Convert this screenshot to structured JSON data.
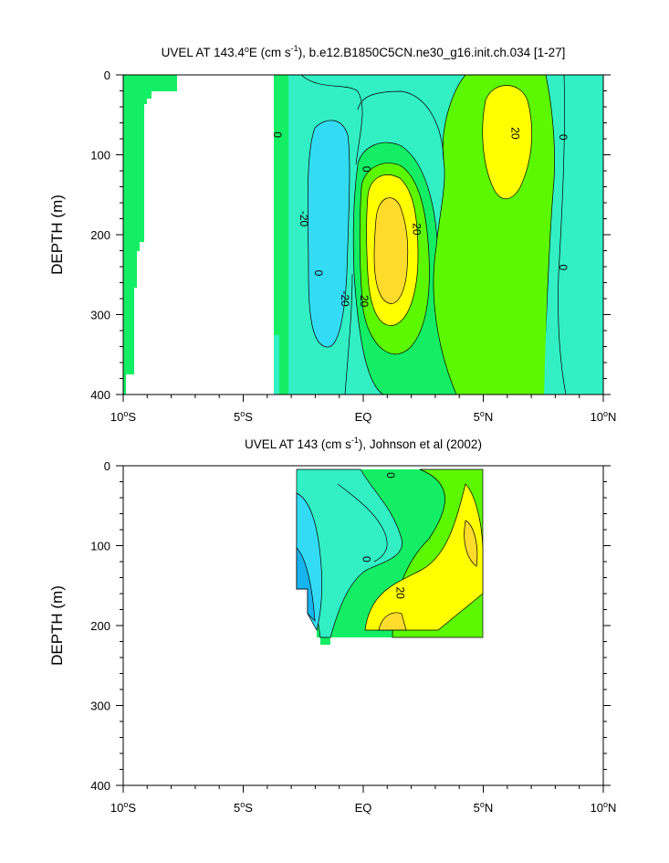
{
  "chart_data": [
    {
      "type": "contour",
      "title": "UVEL AT 143.4°E (cm s-1), b.e12.B1850C5CN.ne30_g16.init.ch.034 [1-27]",
      "title_parts": {
        "pre": "UVEL AT 143.4",
        "deg": "o",
        "mid": "E (cm s",
        "sup": "-1",
        "post": "), b.e12.B1850C5CN.ne30_g16.init.ch.034 [1-27]"
      },
      "ylabel": "DEPTH (m)",
      "xlim": [
        -10,
        10
      ],
      "ylim": [
        400,
        0
      ],
      "x_ticks": [
        {
          "value": -10,
          "num": "10",
          "deg": "o",
          "hemi": "S"
        },
        {
          "value": -5,
          "num": "5",
          "deg": "o",
          "hemi": "S"
        },
        {
          "value": 0,
          "num": "EQ",
          "deg": "",
          "hemi": ""
        },
        {
          "value": 5,
          "num": "5",
          "deg": "o",
          "hemi": "N"
        },
        {
          "value": 10,
          "num": "10",
          "deg": "o",
          "hemi": "N"
        }
      ],
      "y_ticks": [
        "0",
        "100",
        "200",
        "300",
        "400"
      ],
      "contour_levels": [
        -40,
        -30,
        -20,
        -10,
        0,
        10,
        20,
        30,
        40
      ],
      "color_scale": [
        "#0a8fd8",
        "#18b4ee",
        "#33dcf4",
        "#32f0c4",
        "#14ee64",
        "#5cf800",
        "#ffff00",
        "#ffdc2c",
        "#ffbe44"
      ],
      "contour_labels": [
        {
          "text": "0",
          "x": -3.6,
          "y": 75
        },
        {
          "text": "-20",
          "x": -2.5,
          "y": 180
        },
        {
          "text": "0",
          "x": -1.9,
          "y": 248
        },
        {
          "text": "0",
          "x": 0.1,
          "y": 118
        },
        {
          "text": "-20",
          "x": -0.8,
          "y": 280
        },
        {
          "text": "20",
          "x": 0,
          "y": 283
        },
        {
          "text": "20",
          "x": 2.2,
          "y": 193
        },
        {
          "text": "20",
          "x": 6.3,
          "y": 73
        },
        {
          "text": "0",
          "x": 8.3,
          "y": 78
        },
        {
          "text": "0",
          "x": 8.3,
          "y": 241
        }
      ]
    },
    {
      "type": "contour",
      "title": "UVEL AT 143 (cm s-1), Johnson et al (2002)",
      "title_parts": {
        "pre": "UVEL AT 143",
        "deg": "",
        "mid": " (cm s",
        "sup": "-1",
        "post": "), Johnson et al (2002)"
      },
      "ylabel": "DEPTH (m)",
      "xlim": [
        -10,
        10
      ],
      "ylim": [
        400,
        0
      ],
      "x_ticks": [
        {
          "value": -10,
          "num": "10",
          "deg": "o",
          "hemi": "S"
        },
        {
          "value": -5,
          "num": "5",
          "deg": "o",
          "hemi": "S"
        },
        {
          "value": 0,
          "num": "EQ",
          "deg": "",
          "hemi": ""
        },
        {
          "value": 5,
          "num": "5",
          "deg": "o",
          "hemi": "N"
        },
        {
          "value": 10,
          "num": "10",
          "deg": "o",
          "hemi": "N"
        }
      ],
      "y_ticks": [
        "0",
        "100",
        "200",
        "300",
        "400"
      ],
      "data_extent": {
        "x": [
          -2.8,
          5
        ],
        "depth": [
          0,
          210
        ]
      },
      "contour_levels": [
        -40,
        -30,
        -20,
        -10,
        0,
        10,
        20,
        30,
        40
      ],
      "color_scale": [
        "#0a8fd8",
        "#18b4ee",
        "#33dcf4",
        "#32f0c4",
        "#14ee64",
        "#5cf800",
        "#ffff00",
        "#ffdc2c",
        "#ffbe44"
      ],
      "contour_labels": [
        {
          "text": "0",
          "x": 1.1,
          "y": 12
        },
        {
          "text": "0",
          "x": 0.1,
          "y": 117
        },
        {
          "text": "20",
          "x": 1.5,
          "y": 159
        }
      ]
    }
  ]
}
